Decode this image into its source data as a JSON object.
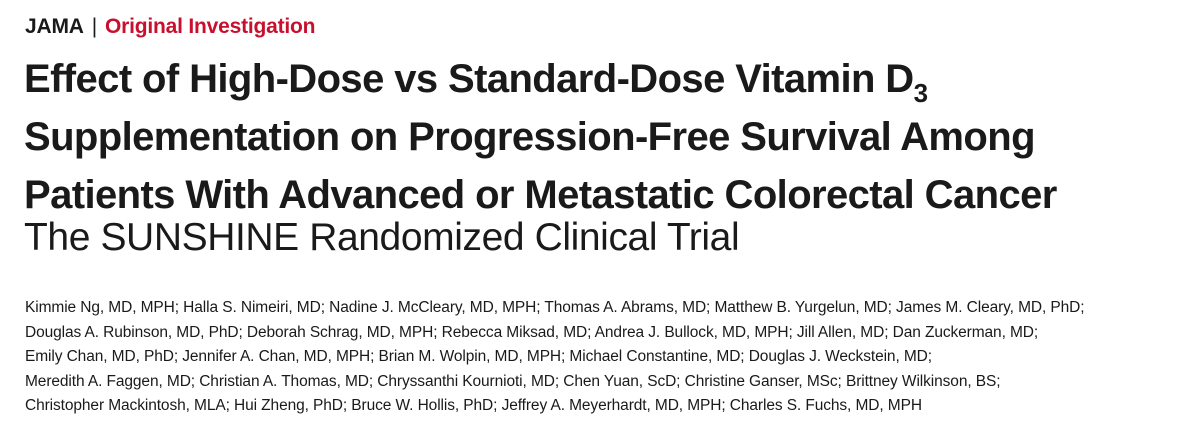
{
  "header": {
    "journal": "JAMA",
    "separator": "|",
    "section": "Original Investigation"
  },
  "article": {
    "title_lines": [
      "Effect of High-Dose vs Standard-Dose Vitamin D",
      "Supplementation on Progression-Free Survival Among",
      "Patients With Advanced or Metastatic Colorectal Cancer"
    ],
    "title_subscript": "3",
    "subtitle": "The SUNSHINE Randomized Clinical Trial",
    "author_lines": [
      "Kimmie Ng, MD, MPH; Halla S. Nimeiri, MD; Nadine J. McCleary, MD, MPH; Thomas A. Abrams, MD; Matthew B. Yurgelun, MD; James M. Cleary, MD, PhD;",
      "Douglas A. Rubinson, MD, PhD; Deborah Schrag, MD, MPH; Rebecca Miksad, MD; Andrea J. Bullock, MD, MPH; Jill Allen, MD; Dan Zuckerman, MD;",
      "Emily Chan, MD, PhD; Jennifer A. Chan, MD, MPH; Brian M. Wolpin, MD, MPH; Michael Constantine, MD; Douglas J. Weckstein, MD;",
      "Meredith A. Faggen, MD; Christian A. Thomas, MD; Chryssanthi Kournioti, MD; Chen Yuan, ScD; Christine Ganser, MSc; Brittney Wilkinson, BS;",
      "Christopher Mackintosh, MLA; Hui Zheng, PhD; Bruce W. Hollis, PhD; Jeffrey A. Meyerhardt, MD, MPH; Charles S. Fuchs, MD, MPH"
    ]
  },
  "colors": {
    "section_accent": "#c8102e",
    "text": "#1a1a1a"
  }
}
